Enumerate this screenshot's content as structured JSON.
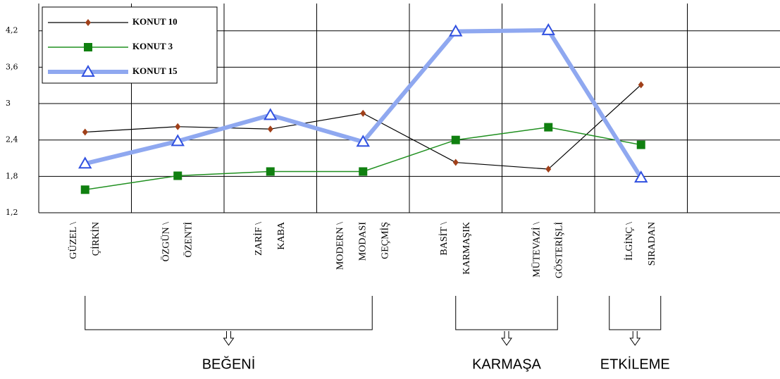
{
  "chart_data": {
    "type": "line",
    "categories": [
      [
        "GÜZEL \\",
        "ÇİRKİN"
      ],
      [
        "ÖZGÜN \\",
        "ÖZENTİ"
      ],
      [
        "ZARİF \\",
        "KABA"
      ],
      [
        "MODERN \\",
        "MODASI",
        "GEÇMİŞ"
      ],
      [
        "BASİT \\",
        "KARMAŞIK"
      ],
      [
        "MÜTEVAZİ \\",
        "GÖSTERİŞLİ"
      ],
      [
        "İLGİNÇ \\",
        "SIRADAN"
      ],
      null
    ],
    "series": [
      {
        "name": "KONUT 10",
        "color": "#000000",
        "marker_color": "#a0401a",
        "marker": "diamond",
        "values": [
          2.53,
          2.62,
          2.58,
          2.84,
          2.03,
          1.92,
          3.31,
          null
        ]
      },
      {
        "name": "KONUT 3",
        "color": "#209020",
        "marker_color": "#108010",
        "marker": "square",
        "values": [
          1.58,
          1.81,
          1.88,
          1.88,
          2.4,
          2.61,
          2.32,
          null
        ]
      },
      {
        "name": "KONUT 15",
        "color": "#8fa8f0",
        "marker_color": "#3050e0",
        "marker": "triangle",
        "values": [
          2.01,
          2.38,
          2.81,
          2.37,
          4.19,
          4.21,
          1.78,
          null
        ]
      }
    ],
    "ylim": [
      1.2,
      4.65
    ],
    "yticks": [
      {
        "value": 1.2,
        "label": "1,2"
      },
      {
        "value": 1.8,
        "label": "1,8"
      },
      {
        "value": 2.4,
        "label": "2,4"
      },
      3,
      {
        "value": 3.6,
        "label": "3,6"
      },
      {
        "value": 4.2,
        "label": "4,2"
      }
    ],
    "grid": true,
    "groups": [
      {
        "label": "BEĞENİ",
        "from": 0,
        "to": 3
      },
      {
        "label": "KARMAŞA",
        "from": 4,
        "to": 5
      },
      {
        "label": "ETKİLEME",
        "from": 6,
        "to": 6
      }
    ]
  }
}
